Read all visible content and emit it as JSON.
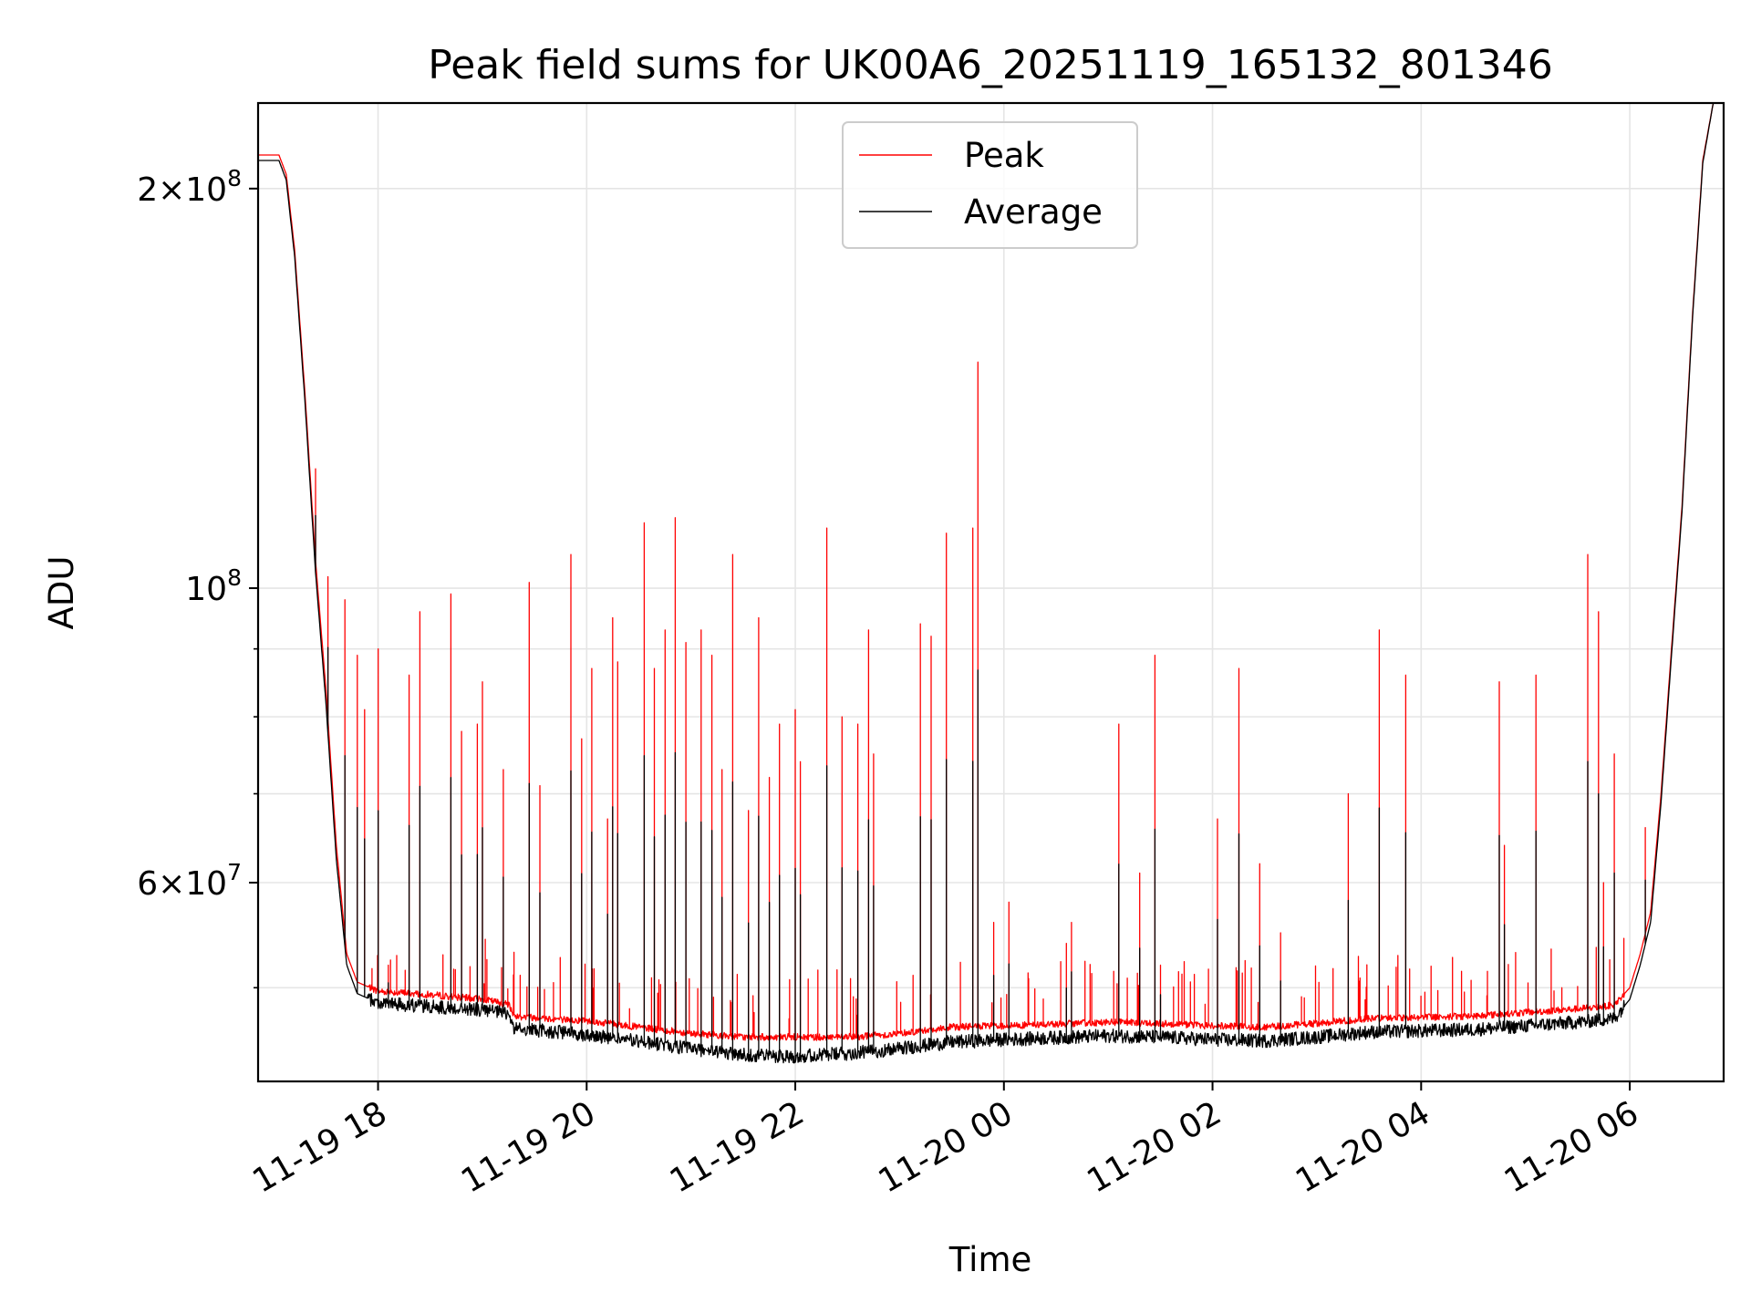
{
  "chart_data": {
    "type": "line",
    "title": "Peak field sums for UK00A6_20251119_165132_801346",
    "xlabel": "Time",
    "ylabel": "ADU",
    "yscale": "log",
    "grid": true,
    "legend_position": "top-center",
    "xlim": [
      16.85,
      30.9
    ],
    "ylim": [
      42500000,
      232000000
    ],
    "x_unit": "hours since 2025-11-19 00:00",
    "x_ticks": [
      {
        "value": 18,
        "label": "11-19 18"
      },
      {
        "value": 20,
        "label": "11-19 20"
      },
      {
        "value": 22,
        "label": "11-19 22"
      },
      {
        "value": 24,
        "label": "11-20 00"
      },
      {
        "value": 26,
        "label": "11-20 02"
      },
      {
        "value": 28,
        "label": "11-20 04"
      },
      {
        "value": 30,
        "label": "11-20 06"
      }
    ],
    "y_major_ticks": [
      {
        "value": 200000000,
        "base": "2",
        "exp": "8",
        "times": true
      },
      {
        "value": 100000000,
        "base": "10",
        "exp": "8",
        "times": false
      },
      {
        "value": 60000000,
        "base": "6",
        "exp": "7",
        "times": true
      }
    ],
    "y_minor_ticks": [
      50000000,
      70000000,
      80000000,
      90000000
    ],
    "legend": [
      {
        "name": "Peak",
        "color": "#ff0000"
      },
      {
        "name": "Average",
        "color": "#000000"
      }
    ],
    "series": [
      {
        "name": "Peak",
        "color": "#ff0000",
        "baseline": [
          [
            16.85,
            212000000
          ],
          [
            17.05,
            212000000
          ],
          [
            17.12,
            205000000
          ],
          [
            17.2,
            180000000
          ],
          [
            17.3,
            140000000
          ],
          [
            17.4,
            105000000
          ],
          [
            17.5,
            84000000
          ],
          [
            17.6,
            64000000
          ],
          [
            17.7,
            53000000
          ],
          [
            17.8,
            50500000
          ],
          [
            18.0,
            49700000
          ],
          [
            18.5,
            49400000
          ],
          [
            19.0,
            49000000
          ],
          [
            19.25,
            48600000
          ],
          [
            19.3,
            47600000
          ],
          [
            20.0,
            47200000
          ],
          [
            21.0,
            46200000
          ],
          [
            21.5,
            45900000
          ],
          [
            22.0,
            45900000
          ],
          [
            22.5,
            45900000
          ],
          [
            22.9,
            46100000
          ],
          [
            23.5,
            46700000
          ],
          [
            24.0,
            46800000
          ],
          [
            25.0,
            47100000
          ],
          [
            25.5,
            47000000
          ],
          [
            26.0,
            46800000
          ],
          [
            26.5,
            46700000
          ],
          [
            27.0,
            47000000
          ],
          [
            27.5,
            47400000
          ],
          [
            28.0,
            47500000
          ],
          [
            28.5,
            47600000
          ],
          [
            29.0,
            47900000
          ],
          [
            29.5,
            48200000
          ],
          [
            29.85,
            48500000
          ],
          [
            30.0,
            50000000
          ],
          [
            30.1,
            53000000
          ],
          [
            30.2,
            57000000
          ],
          [
            30.3,
            70000000
          ],
          [
            30.4,
            90000000
          ],
          [
            30.5,
            115000000
          ],
          [
            30.6,
            160000000
          ],
          [
            30.7,
            210000000
          ],
          [
            30.8,
            232000000
          ],
          [
            30.9,
            232000000
          ]
        ],
        "spikes": [
          [
            17.4,
            123000000
          ],
          [
            17.52,
            102000000
          ],
          [
            17.68,
            98000000
          ],
          [
            17.8,
            89000000
          ],
          [
            17.87,
            81000000
          ],
          [
            18.0,
            90000000
          ],
          [
            18.1,
            52000000
          ],
          [
            18.3,
            86000000
          ],
          [
            18.4,
            96000000
          ],
          [
            18.7,
            99000000
          ],
          [
            18.8,
            78000000
          ],
          [
            18.95,
            79000000
          ],
          [
            19.0,
            85000000
          ],
          [
            19.2,
            73000000
          ],
          [
            19.45,
            101000000
          ],
          [
            19.55,
            71000000
          ],
          [
            19.85,
            106000000
          ],
          [
            19.95,
            77000000
          ],
          [
            20.05,
            87000000
          ],
          [
            20.2,
            67000000
          ],
          [
            20.25,
            95000000
          ],
          [
            20.3,
            88000000
          ],
          [
            20.55,
            112000000
          ],
          [
            20.65,
            87000000
          ],
          [
            20.75,
            93000000
          ],
          [
            20.85,
            113000000
          ],
          [
            20.95,
            91000000
          ],
          [
            21.1,
            93000000
          ],
          [
            21.2,
            89000000
          ],
          [
            21.3,
            73000000
          ],
          [
            21.4,
            106000000
          ],
          [
            21.55,
            68000000
          ],
          [
            21.65,
            95000000
          ],
          [
            21.75,
            72000000
          ],
          [
            21.85,
            79000000
          ],
          [
            22.0,
            81000000
          ],
          [
            22.05,
            74000000
          ],
          [
            22.3,
            111000000
          ],
          [
            22.45,
            80000000
          ],
          [
            22.6,
            79000000
          ],
          [
            22.7,
            93000000
          ],
          [
            22.75,
            75000000
          ],
          [
            23.2,
            94000000
          ],
          [
            23.3,
            92000000
          ],
          [
            23.45,
            110000000
          ],
          [
            23.7,
            111000000
          ],
          [
            23.75,
            148000000
          ],
          [
            23.9,
            56000000
          ],
          [
            24.05,
            58000000
          ],
          [
            24.6,
            54000000
          ],
          [
            24.65,
            56000000
          ],
          [
            25.1,
            79000000
          ],
          [
            25.3,
            61000000
          ],
          [
            25.45,
            89000000
          ],
          [
            25.5,
            52000000
          ],
          [
            26.05,
            67000000
          ],
          [
            26.25,
            87000000
          ],
          [
            26.45,
            62000000
          ],
          [
            26.65,
            55000000
          ],
          [
            27.3,
            70000000
          ],
          [
            27.6,
            93000000
          ],
          [
            27.85,
            86000000
          ],
          [
            28.75,
            85000000
          ],
          [
            28.8,
            64000000
          ],
          [
            29.1,
            86000000
          ],
          [
            29.6,
            106000000
          ],
          [
            29.7,
            96000000
          ],
          [
            29.75,
            60000000
          ],
          [
            29.85,
            75000000
          ],
          [
            30.15,
            66000000
          ]
        ]
      },
      {
        "name": "Average",
        "color": "#000000",
        "baseline": [
          [
            16.85,
            210000000
          ],
          [
            17.05,
            210000000
          ],
          [
            17.12,
            203000000
          ],
          [
            17.2,
            178000000
          ],
          [
            17.3,
            138000000
          ],
          [
            17.4,
            103000000
          ],
          [
            17.5,
            82000000
          ],
          [
            17.6,
            62500000
          ],
          [
            17.7,
            52000000
          ],
          [
            17.8,
            49500000
          ],
          [
            18.0,
            48700000
          ],
          [
            18.5,
            48400000
          ],
          [
            19.0,
            48100000
          ],
          [
            19.25,
            47800000
          ],
          [
            19.3,
            46600000
          ],
          [
            20.0,
            46100000
          ],
          [
            21.0,
            45000000
          ],
          [
            21.5,
            44500000
          ],
          [
            22.0,
            44400000
          ],
          [
            22.5,
            44600000
          ],
          [
            22.9,
            44900000
          ],
          [
            23.5,
            45500000
          ],
          [
            24.0,
            45700000
          ],
          [
            25.0,
            46000000
          ],
          [
            25.5,
            45900000
          ],
          [
            26.0,
            45700000
          ],
          [
            26.5,
            45600000
          ],
          [
            27.0,
            45900000
          ],
          [
            27.5,
            46300000
          ],
          [
            28.0,
            46400000
          ],
          [
            28.5,
            46500000
          ],
          [
            29.0,
            46800000
          ],
          [
            29.5,
            47100000
          ],
          [
            29.85,
            47400000
          ],
          [
            30.0,
            49000000
          ],
          [
            30.1,
            52000000
          ],
          [
            30.2,
            56000000
          ],
          [
            30.3,
            69000000
          ],
          [
            30.4,
            89000000
          ],
          [
            30.5,
            114000000
          ],
          [
            30.6,
            159000000
          ],
          [
            30.7,
            209000000
          ],
          [
            30.8,
            232000000
          ],
          [
            30.9,
            232000000
          ]
        ],
        "spike_factor": 0.55
      }
    ]
  }
}
